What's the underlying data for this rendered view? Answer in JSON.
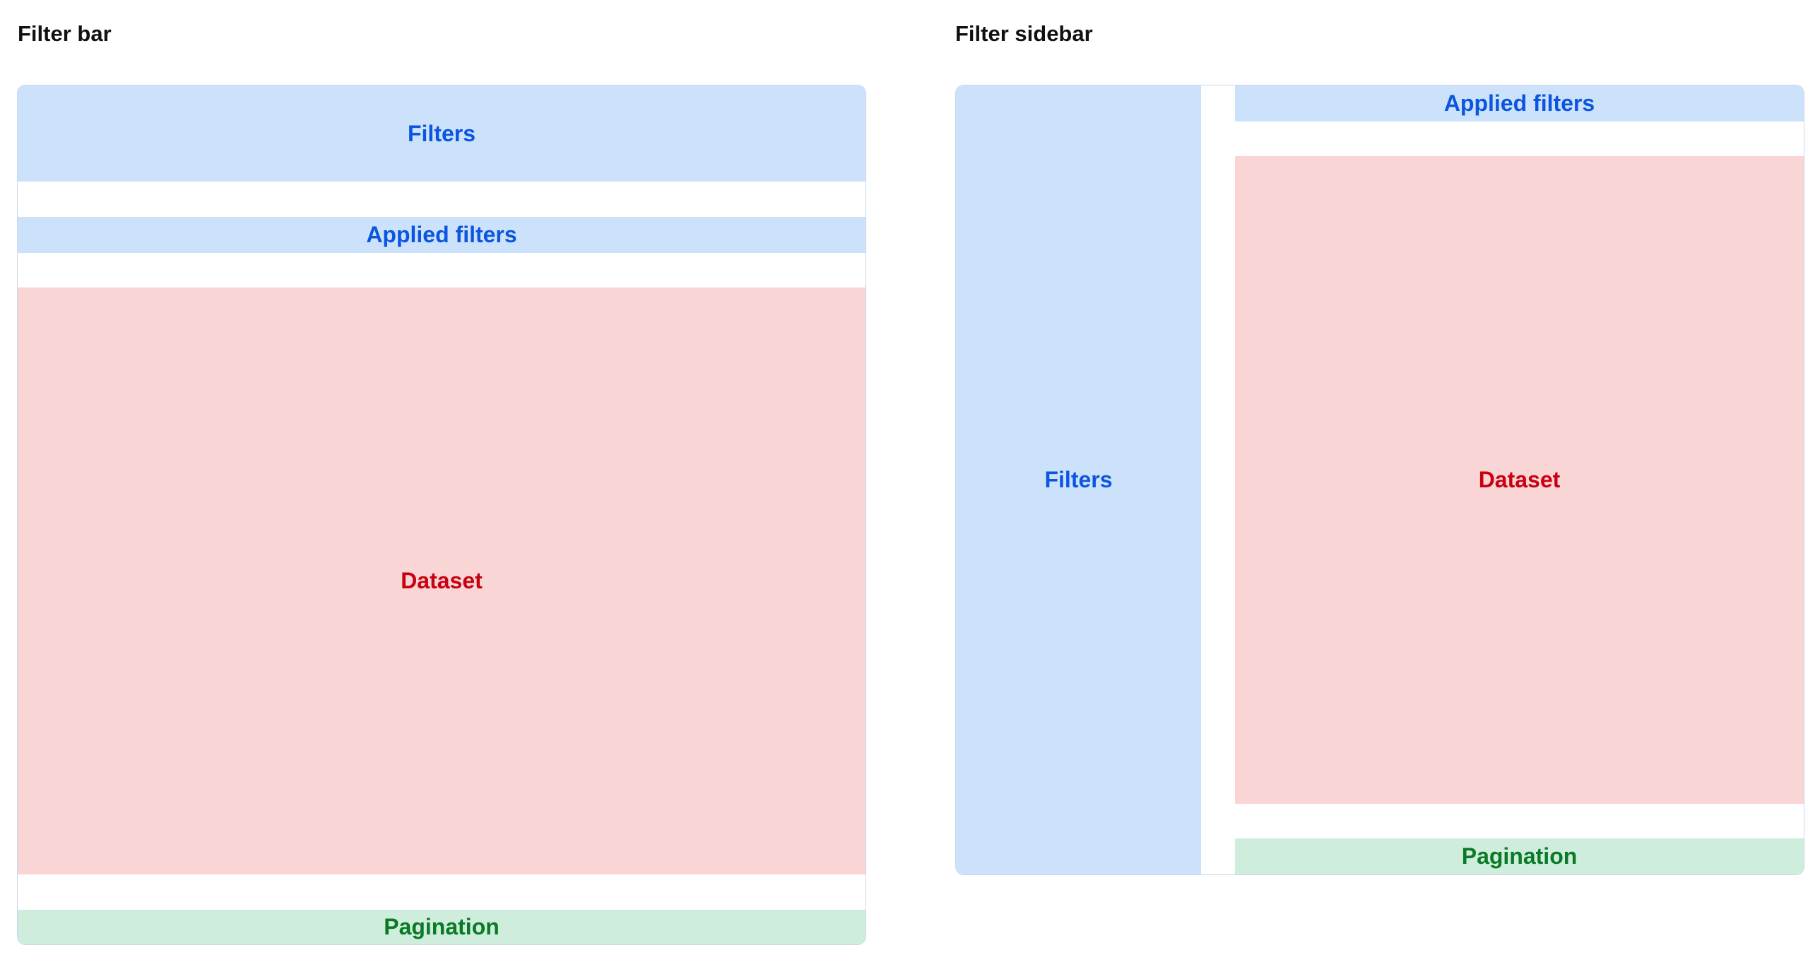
{
  "layouts": [
    {
      "title": "Filter bar",
      "blocks": {
        "filters": "Filters",
        "applied_filters": "Applied filters",
        "dataset": "Dataset",
        "pagination": "Pagination"
      }
    },
    {
      "title": "Filter sidebar",
      "blocks": {
        "filters": "Filters",
        "applied_filters": "Applied filters",
        "dataset": "Dataset",
        "pagination": "Pagination"
      }
    }
  ],
  "colors": {
    "filters": "#cce2fb",
    "dataset": "#f9d5d5",
    "pagination": "#ceeddc",
    "filters_text": "#0b55e0",
    "dataset_text": "#c8000f",
    "pagination_text": "#0a7a26"
  }
}
